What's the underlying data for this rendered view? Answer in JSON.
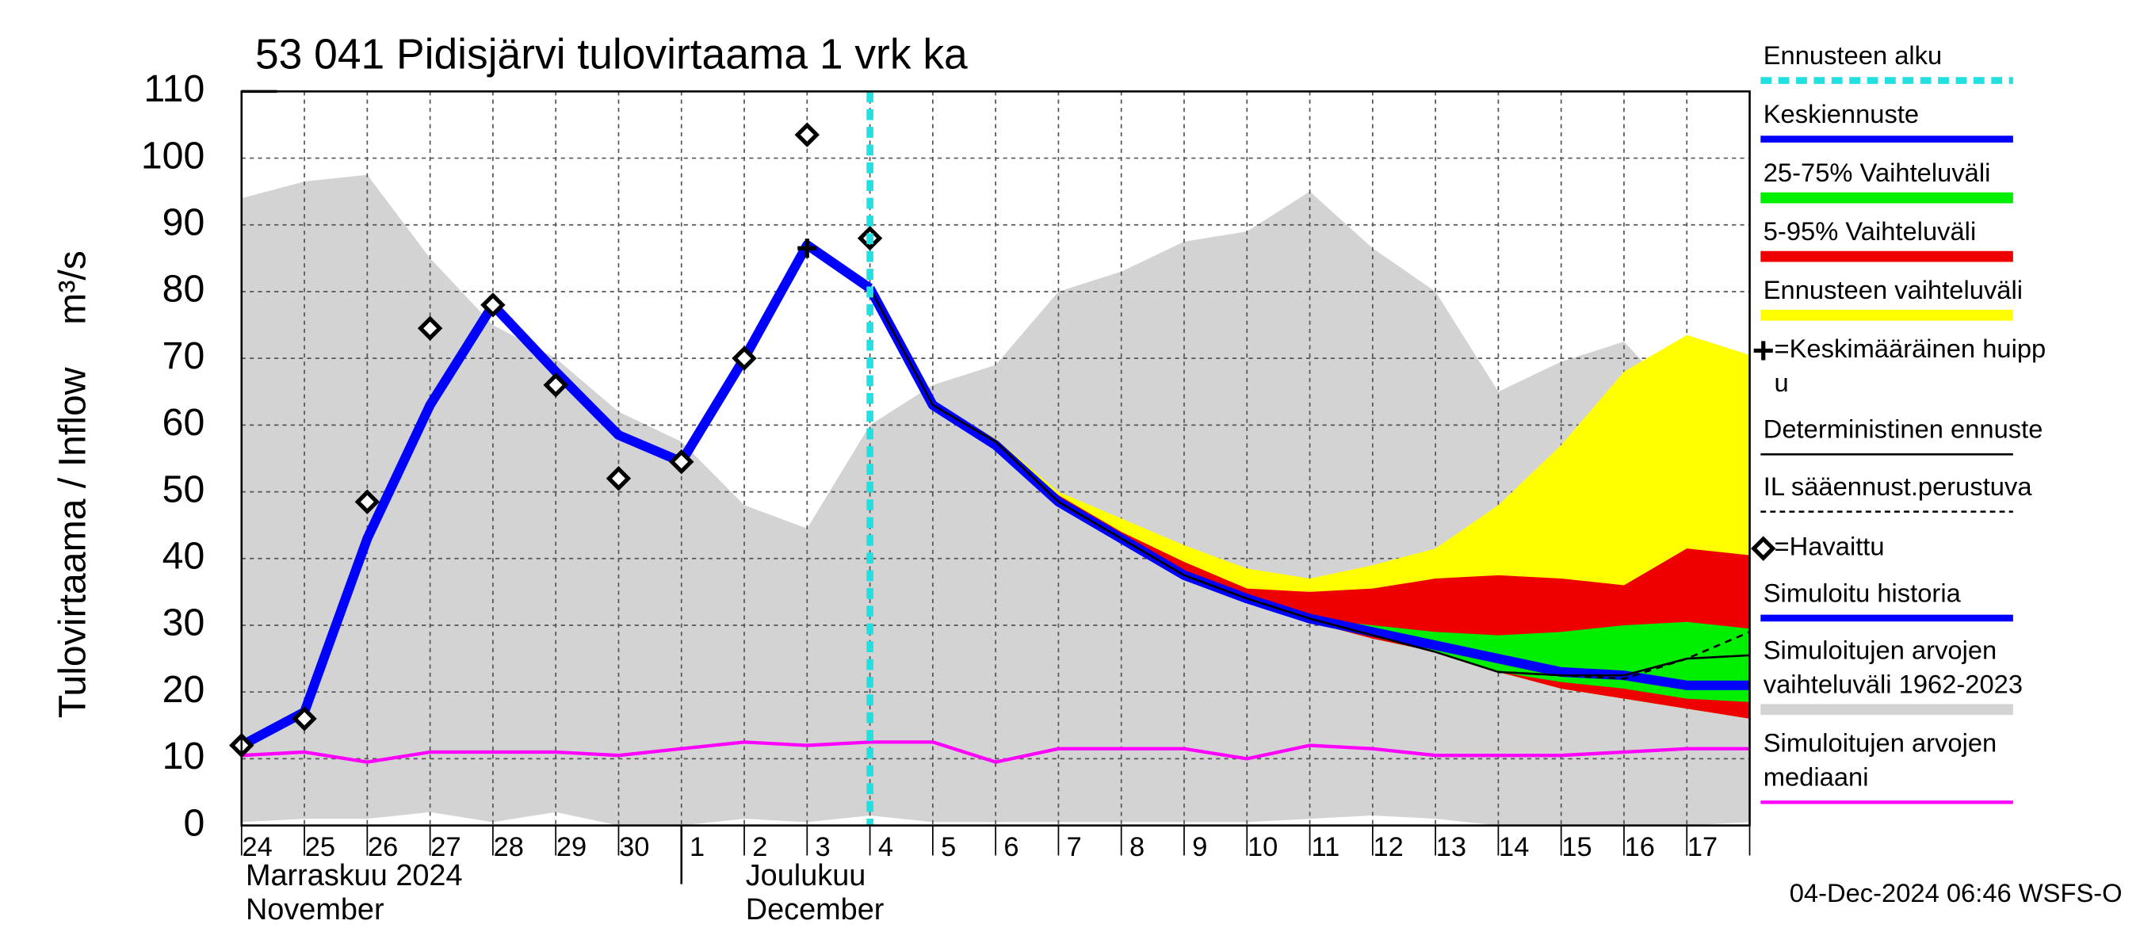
{
  "chart_data": {
    "type": "line",
    "title": "53 041 Pidisjärvi tulovirtaama 1 vrk ka",
    "y_label": "Tulovirtaama / Inflow    m³/s",
    "categories": [
      "24",
      "25",
      "26",
      "27",
      "28",
      "29",
      "30",
      "1",
      "2",
      "3",
      "4",
      "5",
      "6",
      "7",
      "8",
      "9",
      "10",
      "11",
      "12",
      "13",
      "14",
      "15",
      "16",
      "17",
      null
    ],
    "months": [
      {
        "index": 0,
        "lines": [
          "Marraskuu 2024",
          "November"
        ]
      },
      {
        "index": 8,
        "lines": [
          "Joulukuu",
          "December"
        ]
      }
    ],
    "month_boundary": 7,
    "ylim": [
      0,
      110
    ],
    "yticks": [
      0,
      10,
      20,
      30,
      40,
      50,
      60,
      70,
      80,
      90,
      100,
      110
    ],
    "grid": true,
    "series": [
      {
        "name": [
          "Ennusteen alku"
        ],
        "kind": "vline",
        "x": 10,
        "color": "#22e0e0"
      },
      {
        "name": [
          "Keskiennuste"
        ],
        "kind": "line",
        "color": "#0000ff",
        "width": 7,
        "values": [
          null,
          null,
          null,
          null,
          null,
          null,
          null,
          null,
          null,
          null,
          80.5,
          63,
          57,
          48.5,
          43,
          37.5,
          34,
          31,
          29,
          27,
          25,
          23,
          22.5,
          21,
          21
        ]
      },
      {
        "name": [
          "25-75% Vaihteluväli"
        ],
        "kind": "band",
        "color": "#00ee00",
        "high": [
          null,
          null,
          null,
          null,
          null,
          null,
          null,
          null,
          null,
          null,
          80.5,
          63,
          57,
          48.5,
          43,
          37.5,
          34,
          31,
          30,
          29,
          28.5,
          29,
          30,
          30.5,
          29.5
        ],
        "low": [
          null,
          null,
          null,
          null,
          null,
          null,
          null,
          null,
          null,
          null,
          80.5,
          62.5,
          56.5,
          48,
          43,
          37.5,
          33.5,
          30.5,
          28.5,
          26,
          23,
          21.5,
          20.5,
          19,
          18.5
        ]
      },
      {
        "name": [
          "5-95% Vaihteluväli"
        ],
        "kind": "band",
        "color": "#ee0000",
        "high": [
          null,
          null,
          null,
          null,
          null,
          null,
          null,
          null,
          null,
          null,
          80.5,
          63,
          57.5,
          49.5,
          44,
          39.5,
          35.5,
          35,
          35.5,
          37,
          37.5,
          37,
          36,
          41.5,
          40.5
        ],
        "low": [
          null,
          null,
          null,
          null,
          null,
          null,
          null,
          null,
          null,
          null,
          80.5,
          62.5,
          56.5,
          48,
          43,
          37.5,
          33.5,
          30.5,
          28,
          26,
          23,
          20.5,
          19,
          17.5,
          16
        ]
      },
      {
        "name": [
          "Ennusteen vaihteluväli"
        ],
        "kind": "band",
        "color": "#ffff00",
        "high": [
          null,
          null,
          null,
          null,
          null,
          null,
          null,
          null,
          null,
          null,
          80.5,
          63.5,
          58,
          50,
          46,
          42,
          38.5,
          37,
          39,
          41.5,
          48,
          57,
          68,
          73.5,
          70.5
        ],
        "low": [
          null,
          null,
          null,
          null,
          null,
          null,
          null,
          null,
          null,
          null,
          80.5,
          62.5,
          56.5,
          48,
          43,
          37.5,
          33.5,
          30.5,
          28,
          26,
          23,
          20.5,
          19,
          17.5,
          16
        ]
      },
      {
        "name": [
          "=Keskimääräinen huipp",
          "u"
        ],
        "kind": "point",
        "x": 9,
        "value": 86.5,
        "color": "#000000"
      },
      {
        "name": [
          "Deterministinen ennuste"
        ],
        "kind": "line",
        "color": "#000000",
        "width": 1.5,
        "values": [
          null,
          null,
          null,
          null,
          null,
          null,
          null,
          null,
          null,
          null,
          80.5,
          63,
          57.5,
          48.5,
          43,
          37.5,
          34,
          31,
          28.5,
          26,
          23,
          22.5,
          22.5,
          25,
          25.5
        ]
      },
      {
        "name": [
          "IL sääennust.perustuva"
        ],
        "kind": "line",
        "color": "#000000",
        "width": 1.5,
        "dash": true,
        "values": [
          null,
          null,
          null,
          null,
          null,
          null,
          null,
          null,
          null,
          null,
          null,
          null,
          null,
          null,
          null,
          null,
          null,
          null,
          null,
          null,
          23,
          22.5,
          22,
          25,
          29
        ]
      },
      {
        "name": [
          "=Havaittu"
        ],
        "kind": "markers",
        "color": "#000000",
        "values": [
          12,
          16,
          48.5,
          74.5,
          78,
          66,
          52,
          54.5,
          70,
          103.5,
          88,
          null,
          null,
          null,
          null,
          null,
          null,
          null,
          null,
          null,
          null,
          null,
          null,
          null,
          null
        ]
      },
      {
        "name": [
          "Simuloitu historia"
        ],
        "kind": "line",
        "color": "#0000ff",
        "width": 7,
        "values": [
          12,
          17,
          43,
          63,
          78,
          68,
          58.5,
          54.5,
          70,
          87,
          80.5,
          null,
          null,
          null,
          null,
          null,
          null,
          null,
          null,
          null,
          null,
          null,
          null,
          null,
          null
        ]
      },
      {
        "name": [
          "Simuloitujen arvojen",
          "vaihteluväli 1962-2023"
        ],
        "kind": "band",
        "color": "#d3d3d3",
        "high": [
          94,
          96.5,
          97.5,
          85,
          75,
          70,
          62,
          57.5,
          48,
          44.5,
          60,
          66,
          69,
          80,
          83,
          87.5,
          89,
          95,
          86.5,
          80,
          65,
          69.5,
          72.5,
          62.5,
          56.5
        ],
        "low": [
          0.5,
          1,
          1,
          2,
          0.5,
          2,
          0,
          0,
          1,
          0.5,
          1.5,
          0.5,
          0.5,
          0.5,
          0.5,
          0.5,
          0.5,
          1,
          1.5,
          1,
          0,
          0,
          0,
          0,
          0.5
        ]
      },
      {
        "name": [
          "Simuloitujen arvojen",
          "mediaani"
        ],
        "kind": "line",
        "color": "#ff00ff",
        "width": 2.5,
        "values": [
          10.5,
          11,
          9.5,
          11,
          11,
          11,
          10.5,
          11.5,
          12.5,
          12,
          12.5,
          12.5,
          9.5,
          11.5,
          11.5,
          11.5,
          10,
          12,
          11.5,
          10.5,
          10.5,
          10.5,
          11,
          11.5,
          11.5
        ]
      }
    ],
    "timestamp": "04-Dec-2024 06:46 WSFS-O"
  }
}
